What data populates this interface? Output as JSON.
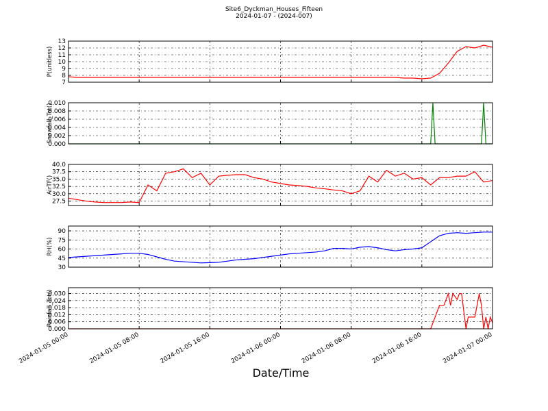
{
  "chart_data": [
    {
      "type": "line",
      "title": "Site6_Dyckman_Houses_Fifteen",
      "subtitle": "2024-01-07 - (2024-007)",
      "ylabel": "P(unitless)",
      "color": "#ff0000",
      "xlim": [
        "2024-01-05 00:00",
        "2024-01-07 00:00"
      ],
      "ylim": [
        7,
        13
      ],
      "yticks": [
        7,
        8,
        9,
        10,
        11,
        12,
        13
      ],
      "grid": true,
      "x": [
        "2024-01-05 00:00",
        "2024-01-05 01:00",
        "2024-01-05 02:00",
        "2024-01-05 03:00",
        "2024-01-05 04:00",
        "2024-01-05 05:00",
        "2024-01-05 06:00",
        "2024-01-05 07:00",
        "2024-01-05 08:00",
        "2024-01-05 09:00",
        "2024-01-05 10:00",
        "2024-01-05 11:00",
        "2024-01-05 12:00",
        "2024-01-05 13:00",
        "2024-01-05 14:00",
        "2024-01-05 15:00",
        "2024-01-05 16:00",
        "2024-01-05 17:00",
        "2024-01-05 18:00",
        "2024-01-05 19:00",
        "2024-01-05 20:00",
        "2024-01-05 21:00",
        "2024-01-05 22:00",
        "2024-01-05 23:00",
        "2024-01-06 00:00",
        "2024-01-06 01:00",
        "2024-01-06 02:00",
        "2024-01-06 03:00",
        "2024-01-06 04:00",
        "2024-01-06 05:00",
        "2024-01-06 06:00",
        "2024-01-06 07:00",
        "2024-01-06 08:00",
        "2024-01-06 09:00",
        "2024-01-06 10:00",
        "2024-01-06 11:00",
        "2024-01-06 12:00",
        "2024-01-06 13:00",
        "2024-01-06 14:00",
        "2024-01-06 15:00",
        "2024-01-06 16:00",
        "2024-01-06 17:00",
        "2024-01-06 18:00",
        "2024-01-06 19:00",
        "2024-01-06 20:00",
        "2024-01-06 21:00",
        "2024-01-06 22:00",
        "2024-01-06 23:00",
        "2024-01-07 00:00"
      ],
      "values": [
        7.8,
        7.7,
        7.7,
        7.7,
        7.7,
        7.7,
        7.7,
        7.7,
        7.7,
        7.7,
        7.7,
        7.7,
        7.7,
        7.7,
        7.7,
        7.7,
        7.7,
        7.7,
        7.7,
        7.7,
        7.7,
        7.7,
        7.7,
        7.7,
        7.7,
        7.7,
        7.7,
        7.7,
        7.7,
        7.7,
        7.7,
        7.7,
        7.7,
        7.7,
        7.7,
        7.7,
        7.7,
        7.7,
        7.6,
        7.6,
        7.5,
        7.6,
        8.3,
        9.8,
        11.5,
        12.2,
        12.0,
        12.4,
        12.1
      ]
    },
    {
      "type": "line",
      "ylabel": "Snowfall_Tot()",
      "color": "#007f00",
      "xlim": [
        "2024-01-05 00:00",
        "2024-01-07 00:00"
      ],
      "ylim": [
        0,
        0.01
      ],
      "yticks": [
        {
          "value": 0,
          "label": "0.000"
        },
        {
          "value": 0.002,
          "label": "0.002"
        },
        {
          "value": 0.004,
          "label": "0.004"
        },
        {
          "value": 0.006,
          "label": "0.006"
        },
        {
          "value": 0.008,
          "label": "0.008"
        },
        {
          "value": 0.01,
          "label": "0.010"
        }
      ],
      "grid": true,
      "x": [
        "2024-01-05 00:00",
        "2024-01-06 17:00",
        "2024-01-06 17:15",
        "2024-01-06 17:30",
        "2024-01-06 22:45",
        "2024-01-06 23:00",
        "2024-01-06 23:15",
        "2024-01-07 00:00"
      ],
      "values": [
        0,
        0,
        0.01,
        0,
        0,
        0.01,
        0,
        0
      ]
    },
    {
      "type": "line",
      "ylabel": "AirTF()",
      "color": "#ff0000",
      "xlim": [
        "2024-01-05 00:00",
        "2024-01-07 00:00"
      ],
      "ylim": [
        26,
        40
      ],
      "yticks": [
        27.5,
        {
          "value": 30,
          "label": "30.0"
        },
        32.5,
        {
          "value": 35,
          "label": "35.0"
        },
        37.5,
        {
          "value": 40,
          "label": "40.0"
        }
      ],
      "grid": true,
      "x": [
        "2024-01-05 00:00",
        "2024-01-05 01:00",
        "2024-01-05 02:00",
        "2024-01-05 03:00",
        "2024-01-05 04:00",
        "2024-01-05 05:00",
        "2024-01-05 06:00",
        "2024-01-05 07:00",
        "2024-01-05 08:00",
        "2024-01-05 09:00",
        "2024-01-05 10:00",
        "2024-01-05 11:00",
        "2024-01-05 12:00",
        "2024-01-05 13:00",
        "2024-01-05 14:00",
        "2024-01-05 15:00",
        "2024-01-05 16:00",
        "2024-01-05 17:00",
        "2024-01-05 18:00",
        "2024-01-05 19:00",
        "2024-01-05 20:00",
        "2024-01-05 21:00",
        "2024-01-05 22:00",
        "2024-01-05 23:00",
        "2024-01-06 00:00",
        "2024-01-06 01:00",
        "2024-01-06 02:00",
        "2024-01-06 03:00",
        "2024-01-06 04:00",
        "2024-01-06 05:00",
        "2024-01-06 06:00",
        "2024-01-06 07:00",
        "2024-01-06 08:00",
        "2024-01-06 09:00",
        "2024-01-06 10:00",
        "2024-01-06 11:00",
        "2024-01-06 12:00",
        "2024-01-06 13:00",
        "2024-01-06 14:00",
        "2024-01-06 15:00",
        "2024-01-06 16:00",
        "2024-01-06 17:00",
        "2024-01-06 18:00",
        "2024-01-06 19:00",
        "2024-01-06 20:00",
        "2024-01-06 21:00",
        "2024-01-06 22:00",
        "2024-01-06 23:00",
        "2024-01-07 00:00"
      ],
      "values": [
        28.5,
        28,
        27.5,
        27.2,
        27,
        27,
        27,
        27.2,
        27,
        33,
        31,
        37,
        37.5,
        38.5,
        35.5,
        37,
        33,
        36,
        36.3,
        36.5,
        36.5,
        35.5,
        35,
        34,
        33.5,
        33,
        32.8,
        32.5,
        32,
        31.7,
        31.3,
        31,
        30,
        31,
        36,
        34,
        38,
        36,
        37,
        35,
        35.5,
        33,
        35.5,
        35.5,
        36,
        36,
        37.5,
        34,
        34.5
      ]
    },
    {
      "type": "line",
      "ylabel": "RH(%)",
      "color": "#0000ff",
      "xlim": [
        "2024-01-05 00:00",
        "2024-01-07 00:00"
      ],
      "ylim": [
        30,
        98
      ],
      "yticks": [
        30,
        45,
        60,
        75,
        90
      ],
      "grid": true,
      "x": [
        "2024-01-05 00:00",
        "2024-01-05 01:00",
        "2024-01-05 02:00",
        "2024-01-05 03:00",
        "2024-01-05 04:00",
        "2024-01-05 05:00",
        "2024-01-05 06:00",
        "2024-01-05 07:00",
        "2024-01-05 08:00",
        "2024-01-05 09:00",
        "2024-01-05 10:00",
        "2024-01-05 11:00",
        "2024-01-05 12:00",
        "2024-01-05 13:00",
        "2024-01-05 14:00",
        "2024-01-05 15:00",
        "2024-01-05 16:00",
        "2024-01-05 17:00",
        "2024-01-05 18:00",
        "2024-01-05 19:00",
        "2024-01-05 20:00",
        "2024-01-05 21:00",
        "2024-01-05 22:00",
        "2024-01-05 23:00",
        "2024-01-06 00:00",
        "2024-01-06 01:00",
        "2024-01-06 02:00",
        "2024-01-06 03:00",
        "2024-01-06 04:00",
        "2024-01-06 05:00",
        "2024-01-06 06:00",
        "2024-01-06 07:00",
        "2024-01-06 08:00",
        "2024-01-06 09:00",
        "2024-01-06 10:00",
        "2024-01-06 11:00",
        "2024-01-06 12:00",
        "2024-01-06 13:00",
        "2024-01-06 14:00",
        "2024-01-06 15:00",
        "2024-01-06 16:00",
        "2024-01-06 17:00",
        "2024-01-06 18:00",
        "2024-01-06 19:00",
        "2024-01-06 20:00",
        "2024-01-06 21:00",
        "2024-01-06 22:00",
        "2024-01-06 23:00",
        "2024-01-07 00:00"
      ],
      "values": [
        46,
        47,
        48,
        49,
        50,
        51,
        52,
        53,
        53,
        51,
        47,
        43,
        40,
        39,
        38,
        37,
        37.5,
        38,
        40,
        42,
        43,
        44,
        46,
        48,
        50,
        52,
        53,
        54,
        55,
        57,
        61,
        61,
        60,
        63,
        64,
        62,
        59,
        57,
        59,
        60,
        62,
        72,
        82,
        86,
        87,
        86,
        87,
        88,
        88
      ]
    },
    {
      "type": "line",
      "ylabel": "Rainfall_Tot()",
      "xlabel": "Date/Time",
      "color": "#ff0000",
      "xlim": [
        "2024-01-05 00:00",
        "2024-01-07 00:00"
      ],
      "ylim": [
        0,
        0.035
      ],
      "yticks": [
        {
          "value": 0,
          "label": "0.000"
        },
        {
          "value": 0.006,
          "label": "0.006"
        },
        {
          "value": 0.012,
          "label": "0.012"
        },
        {
          "value": 0.018,
          "label": "0.018"
        },
        {
          "value": 0.024,
          "label": "0.024"
        },
        {
          "value": 0.03,
          "label": "0.030"
        }
      ],
      "grid": true,
      "xticks": [
        "2024-01-05 00:00",
        "2024-01-05 08:00",
        "2024-01-05 16:00",
        "2024-01-06 00:00",
        "2024-01-06 08:00",
        "2024-01-06 16:00",
        "2024-01-07 00:00"
      ],
      "x": [
        "2024-01-05 00:00",
        "2024-01-06 17:00",
        "2024-01-06 17:30",
        "2024-01-06 18:00",
        "2024-01-06 18:30",
        "2024-01-06 19:00",
        "2024-01-06 19:15",
        "2024-01-06 19:30",
        "2024-01-06 20:00",
        "2024-01-06 20:15",
        "2024-01-06 20:30",
        "2024-01-06 21:00",
        "2024-01-06 21:15",
        "2024-01-06 22:00",
        "2024-01-06 22:30",
        "2024-01-06 22:45",
        "2024-01-06 23:00",
        "2024-01-06 23:15",
        "2024-01-06 23:30",
        "2024-01-06 23:45",
        "2024-01-07 00:00"
      ],
      "values": [
        0,
        0,
        0.01,
        0.02,
        0.02,
        0.03,
        0.02,
        0.03,
        0.025,
        0.03,
        0.03,
        0,
        0.01,
        0.01,
        0.03,
        0.02,
        0,
        0.01,
        0,
        0.01,
        0.005
      ]
    }
  ]
}
